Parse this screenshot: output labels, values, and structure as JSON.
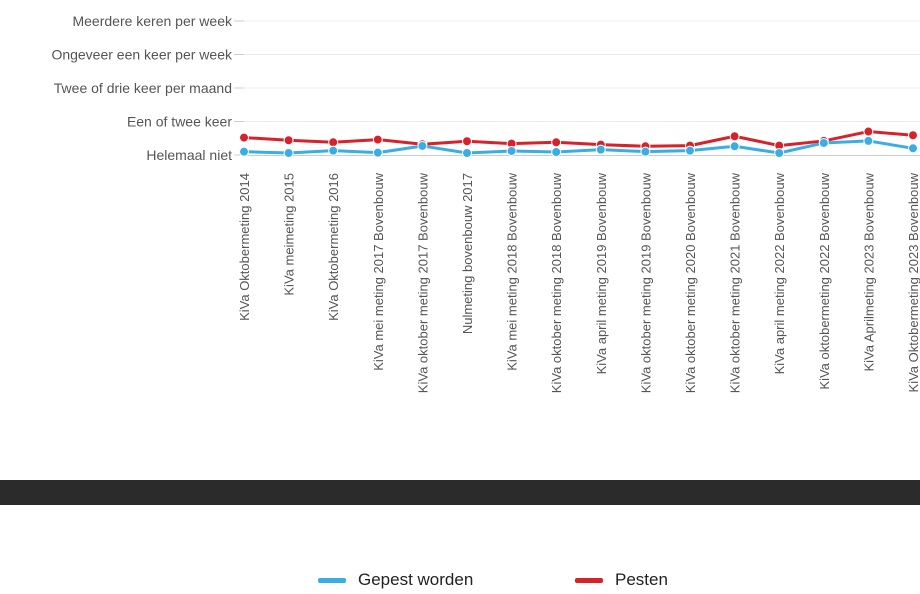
{
  "chart_data": {
    "type": "line",
    "y_levels": [
      "Helemaal niet",
      "Een of twee keer",
      "Twee of drie keer per maand",
      "Ongeveer een keer per week",
      "Meerdere keren per week"
    ],
    "ylim": [
      0,
      4
    ],
    "categories": [
      "KiVa Oktobermeting 2014",
      "KiVa meimeting 2015",
      "KiVa Oktobermeting 2016",
      "KiVa mei meting 2017 Bovenbouw",
      "KiVa oktober meting 2017 Bovenbouw",
      "Nulmeting bovenbouw 2017",
      "KiVa mei meting 2018 Bovenbouw",
      "KiVa oktober meting 2018 Bovenbouw",
      "KiVa april meting 2019 Bovenbouw",
      "KiVa oktober meting 2019 Bovenbouw",
      "KiVa oktober meting 2020 Bovenbouw",
      "KiVa oktober meting 2021 Bovenbouw",
      "KiVa april meting 2022 Bovenbouw",
      "KiVa oktobermeting 2022 Bovenbouw",
      "KiVa Aprilmeting 2023 Bovenbouw",
      "KiVa Oktobermeting 2023 Bovenbouw"
    ],
    "series": [
      {
        "name": "Gepest worden",
        "color": "#3aaee3",
        "values": [
          0.1,
          0.06,
          0.13,
          0.07,
          0.27,
          0.06,
          0.12,
          0.09,
          0.16,
          0.1,
          0.13,
          0.26,
          0.06,
          0.36,
          0.42,
          0.2
        ]
      },
      {
        "name": "Pesten",
        "color": "#d6232b",
        "values": [
          0.52,
          0.44,
          0.38,
          0.46,
          0.32,
          0.41,
          0.34,
          0.38,
          0.31,
          0.26,
          0.28,
          0.56,
          0.28,
          0.42,
          0.7,
          0.59
        ]
      }
    ],
    "grid": true,
    "legend_position": "bottom"
  }
}
